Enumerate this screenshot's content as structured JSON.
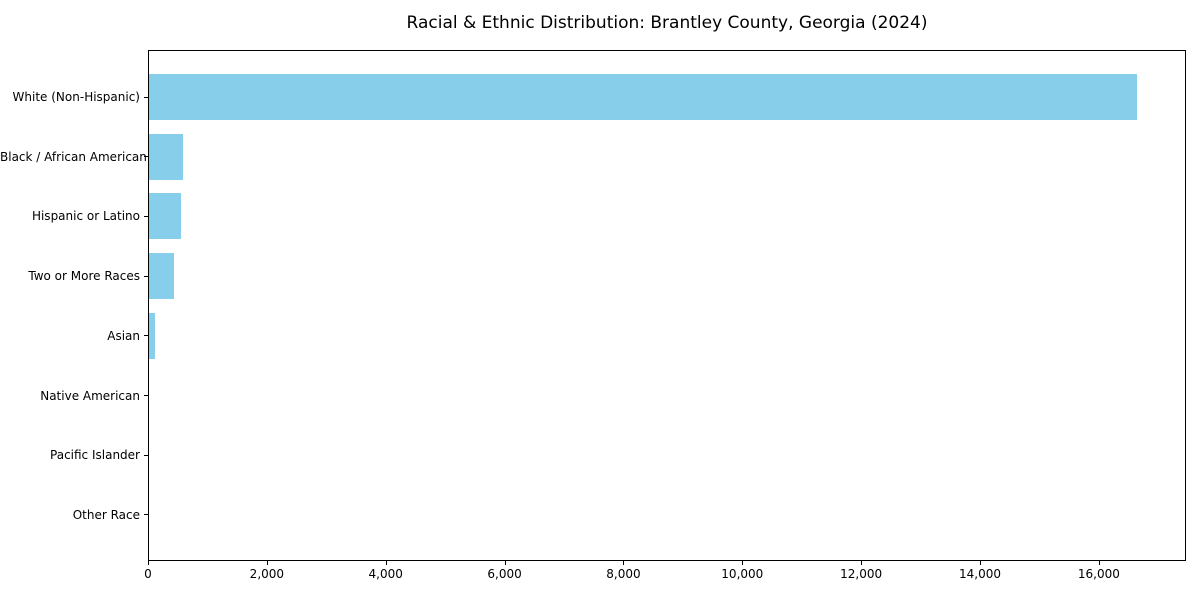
{
  "figure": {
    "title": "Racial & Ethnic Distribution: Brantley County, Georgia (2024)"
  },
  "chart_data": {
    "type": "bar",
    "orientation": "horizontal",
    "title": "Racial & Ethnic Distribution: Brantley County, Georgia (2024)",
    "categories": [
      "White (Non-Hispanic)",
      "Black / African American",
      "Hispanic or Latino",
      "Two or More Races",
      "Asian",
      "Native American",
      "Pacific Islander",
      "Other Race"
    ],
    "values": [
      16620,
      575,
      540,
      420,
      100,
      0,
      0,
      0
    ],
    "xlabel": "",
    "ylabel": "",
    "xlim": [
      0,
      17466
    ],
    "xticks": [
      0,
      2000,
      4000,
      6000,
      8000,
      10000,
      12000,
      14000,
      16000
    ],
    "xtick_labels": [
      "0",
      "2,000",
      "4,000",
      "6,000",
      "8,000",
      "10,000",
      "12,000",
      "14,000",
      "16,000"
    ],
    "bar_color": "#87ceeb",
    "axis_color": "#000000",
    "background_color": "#ffffff",
    "grid": false,
    "legend": null
  }
}
